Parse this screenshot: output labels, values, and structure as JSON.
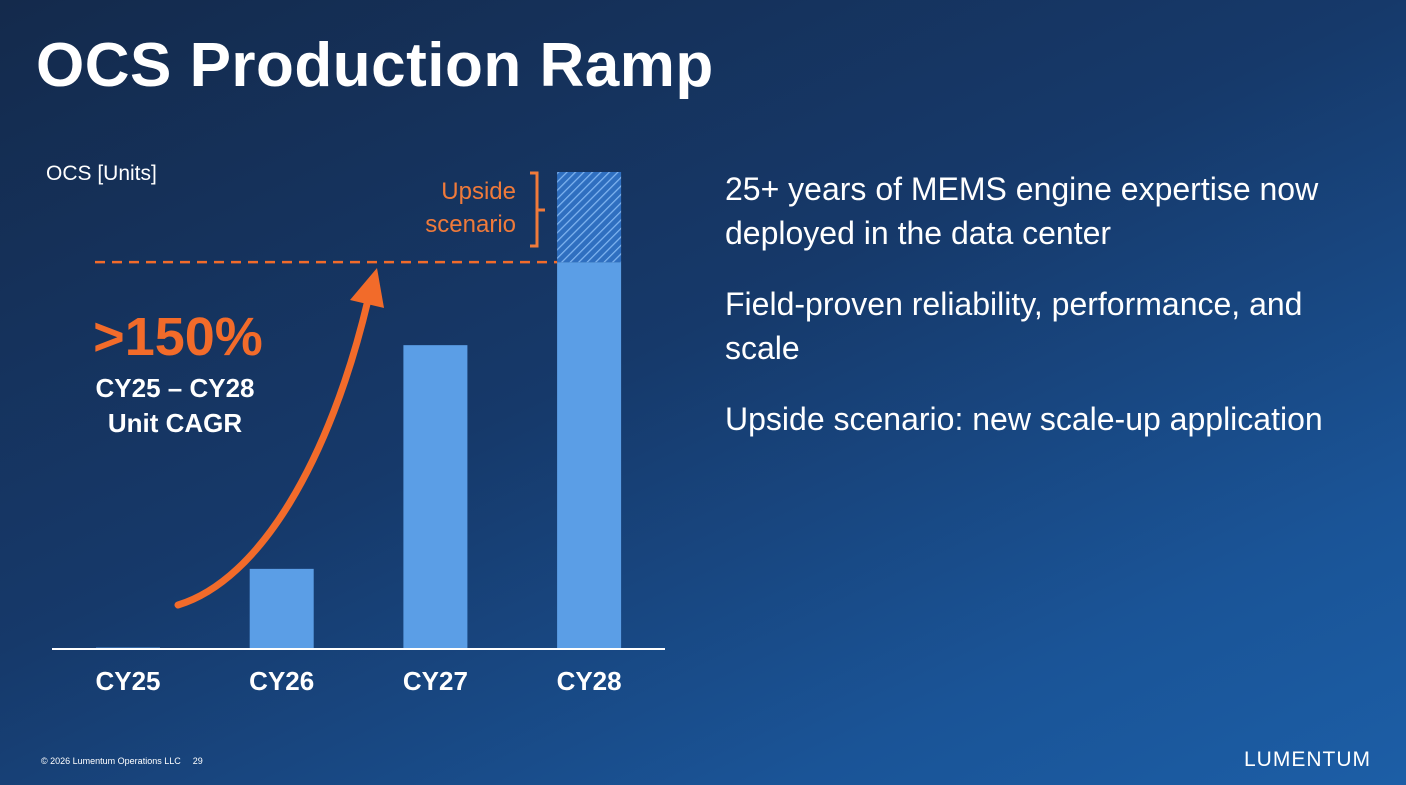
{
  "title": "OCS Production Ramp",
  "chart_data": {
    "type": "bar",
    "y_label": "OCS [Units]",
    "categories": [
      "CY25",
      "CY26",
      "CY27",
      "CY28"
    ],
    "series": [
      {
        "color": "#5b9ee6",
        "values": [
          0.3,
          16.8,
          63.7,
          81.1
        ]
      },
      {
        "name": "Upside scenario",
        "color": "#5b9ee6",
        "pattern": "hatched",
        "values": [
          null,
          null,
          null,
          18.9
        ]
      }
    ],
    "ylim": [
      0,
      100
    ],
    "stacked": true,
    "annotation": {
      "value": ">150%",
      "label": "CY25 – CY28 Unit CAGR",
      "color": "#f26b2a"
    }
  },
  "bullets": [
    "25+ years of MEMS engine expertise now deployed in the data center",
    "Field-proven reliability, performance, and scale",
    "Upside scenario: new scale-up application"
  ],
  "footer": {
    "copyright": "© 2026 Lumentum Operations LLC",
    "page": "29"
  },
  "logo": "LUMENTUM"
}
